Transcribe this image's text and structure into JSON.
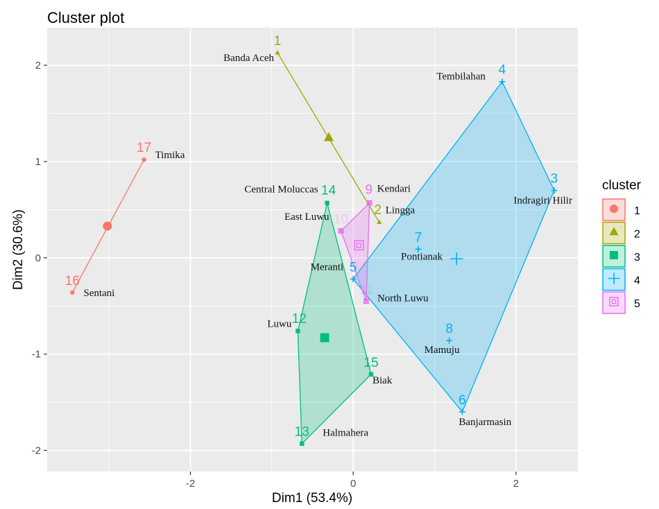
{
  "chart_data": {
    "type": "scatter",
    "title": "Cluster plot",
    "xlabel": "Dim1 (53.4%)",
    "ylabel": "Dim2 (30.6%)",
    "xlim": [
      -3.76,
      2.76
    ],
    "ylim": [
      -2.22,
      2.39
    ],
    "x_ticks": [
      -2,
      0,
      2
    ],
    "y_ticks": [
      -2,
      -1,
      0,
      1,
      2
    ],
    "x_tick_labels": [
      "-2",
      "0",
      "2"
    ],
    "y_tick_labels": [
      "-2",
      "-1",
      "0",
      "1",
      "2"
    ],
    "grid": true,
    "legend": {
      "title": "cluster",
      "placement": "right",
      "entries": [
        "1",
        "2",
        "3",
        "4",
        "5"
      ]
    },
    "clusters": [
      {
        "id": "1",
        "color": "#F8766D",
        "shape": "circle",
        "center": [
          -3.02,
          0.33
        ]
      },
      {
        "id": "2",
        "color": "#A3A500",
        "shape": "triangle",
        "center": [
          -0.3,
          1.25
        ]
      },
      {
        "id": "3",
        "color": "#00BF7D",
        "shape": "square",
        "center": [
          -0.35,
          -0.83
        ]
      },
      {
        "id": "4",
        "color": "#00B0F6",
        "shape": "plus",
        "center": [
          1.27,
          -0.01
        ]
      },
      {
        "id": "5",
        "color": "#E76BF3",
        "shape": "boxed-square",
        "center": [
          0.07,
          0.13
        ]
      }
    ],
    "points": [
      {
        "id": "1",
        "name": "Banda Aceh",
        "cluster": "2",
        "x": -0.93,
        "y": 2.13
      },
      {
        "id": "2",
        "name": "Lingga",
        "cluster": "2",
        "x": 0.32,
        "y": 0.37
      },
      {
        "id": "3",
        "name": "Indragiri Hilir",
        "cluster": "4",
        "x": 2.47,
        "y": 0.7
      },
      {
        "id": "4",
        "name": "Tembilahan",
        "cluster": "4",
        "x": 1.83,
        "y": 1.83
      },
      {
        "id": "5",
        "name": "Meranti",
        "cluster": "4",
        "x": 0.0,
        "y": -0.22
      },
      {
        "id": "6",
        "name": "Banjarmasin",
        "cluster": "4",
        "x": 1.34,
        "y": -1.6
      },
      {
        "id": "7",
        "name": "Pontianak",
        "cluster": "4",
        "x": 0.8,
        "y": 0.09
      },
      {
        "id": "8",
        "name": "Mamuju",
        "cluster": "4",
        "x": 1.18,
        "y": -0.86
      },
      {
        "id": "9",
        "name": "Kendari",
        "cluster": "5",
        "x": 0.2,
        "y": 0.57
      },
      {
        "id": "10",
        "name": "East Luwu",
        "cluster": "5",
        "x": -0.15,
        "y": 0.28
      },
      {
        "id": "11",
        "name": "North Luwu",
        "cluster": "5",
        "x": 0.16,
        "y": -0.45
      },
      {
        "id": "12",
        "name": "Luwu",
        "cluster": "3",
        "x": -0.68,
        "y": -0.76
      },
      {
        "id": "13",
        "name": "Halmahera",
        "cluster": "3",
        "x": -0.63,
        "y": -1.93
      },
      {
        "id": "14",
        "name": "Central  Moluccas",
        "cluster": "3",
        "x": -0.32,
        "y": 0.57
      },
      {
        "id": "15",
        "name": "Biak",
        "cluster": "3",
        "x": 0.22,
        "y": -1.21
      },
      {
        "id": "16",
        "name": "Sentani",
        "cluster": "1",
        "x": -3.45,
        "y": -0.36
      },
      {
        "id": "17",
        "name": "Timika",
        "cluster": "1",
        "x": -2.57,
        "y": 1.02
      }
    ]
  }
}
